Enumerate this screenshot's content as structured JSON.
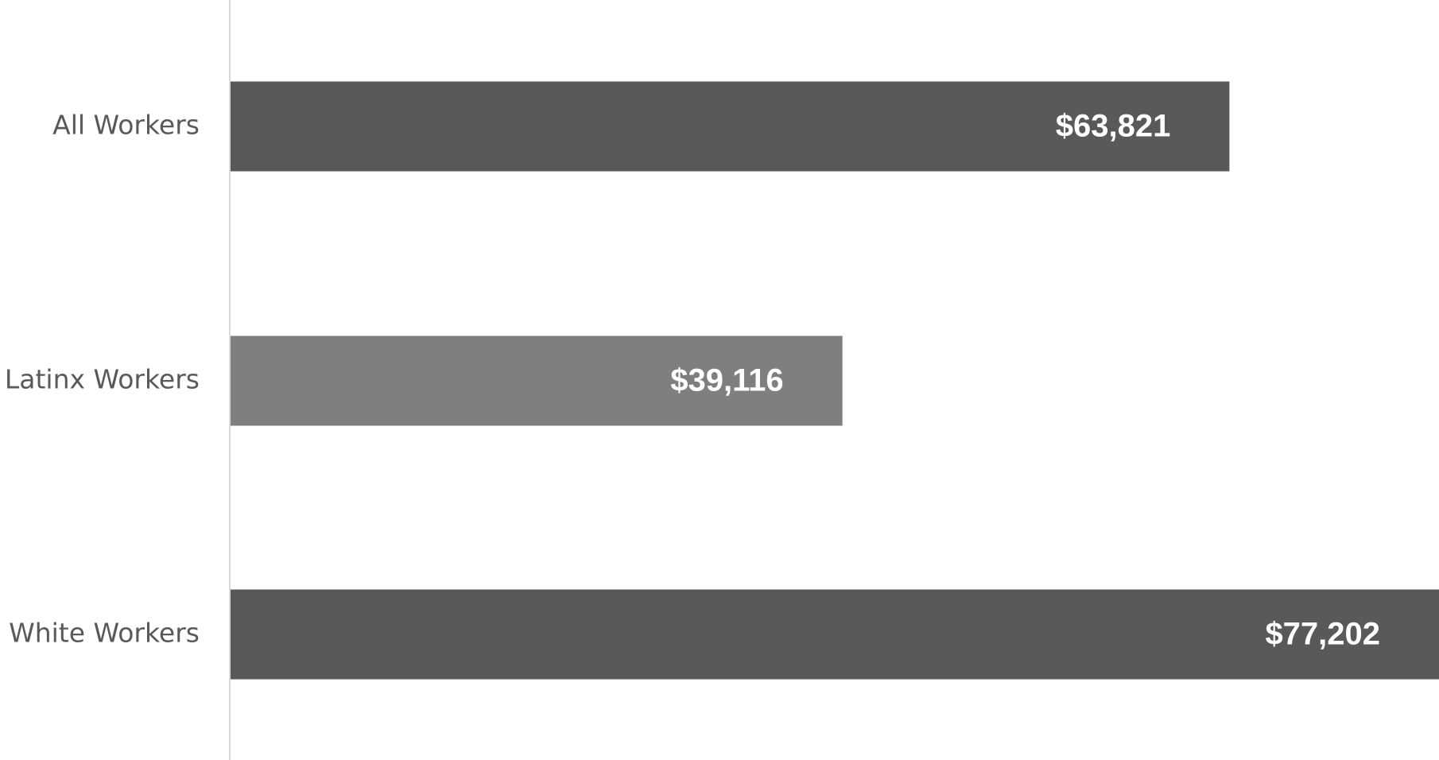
{
  "chart_data": {
    "type": "bar",
    "orientation": "horizontal",
    "categories": [
      "All Workers",
      "Latinx Workers",
      "White Workers"
    ],
    "values": [
      63821,
      39116,
      77202
    ],
    "value_labels": [
      "$63,821",
      "$39,116",
      "$77,202"
    ],
    "colors": [
      "#595959",
      "#7f7f7f",
      "#595959"
    ],
    "xlim": [
      0,
      77200
    ]
  }
}
